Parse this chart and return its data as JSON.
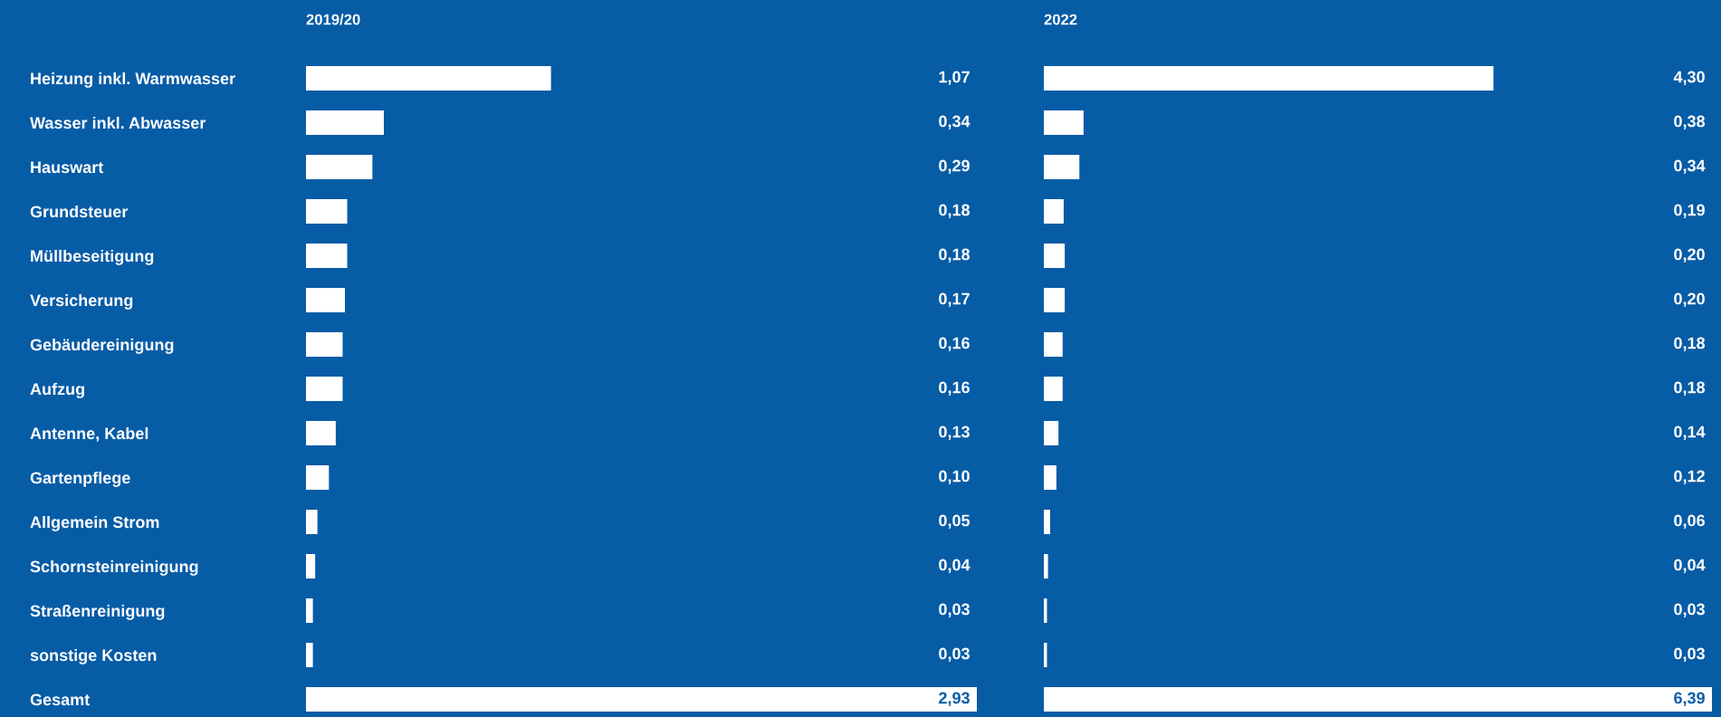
{
  "chart_data": [
    {
      "type": "bar",
      "orientation": "horizontal",
      "title": "2019/20",
      "categories": [
        "Heizung inkl. Warmwasser",
        "Wasser inkl. Abwasser",
        "Hauswart",
        "Grundsteuer",
        "Müllbeseitigung",
        "Versicherung",
        "Gebäudereinigung",
        "Aufzug",
        "Antenne, Kabel",
        "Gartenpflege",
        "Allgemein Strom",
        "Schornsteinreinigung",
        "Straßenreinigung",
        "sonstige Kosten",
        "Gesamt"
      ],
      "values": [
        1.07,
        0.34,
        0.29,
        0.18,
        0.18,
        0.17,
        0.16,
        0.16,
        0.13,
        0.1,
        0.05,
        0.04,
        0.03,
        0.03,
        2.93
      ],
      "value_labels": [
        "1,07",
        "0,34",
        "0,29",
        "0,18",
        "0,18",
        "0,17",
        "0,16",
        "0,16",
        "0,13",
        "0,10",
        "0,05",
        "0,04",
        "0,03",
        "0,03",
        "2,93"
      ],
      "color": "#ffffff"
    },
    {
      "type": "bar",
      "orientation": "horizontal",
      "title": "2022",
      "categories": [
        null,
        null,
        null,
        null,
        null,
        null,
        null,
        null,
        null,
        null,
        null,
        null,
        null,
        null,
        null
      ],
      "values": [
        4.3,
        0.38,
        0.34,
        0.19,
        0.2,
        0.2,
        0.18,
        0.18,
        0.14,
        0.12,
        0.06,
        0.04,
        0.03,
        0.03,
        6.39
      ],
      "value_labels": [
        "4,30",
        "0,38",
        "0,34",
        "0,19",
        "0,20",
        "0,20",
        "0,18",
        "0,18",
        "0,14",
        "0,12",
        "0,06",
        "0,04",
        "0,03",
        "0,03",
        "6,39"
      ],
      "color": "#ffffff"
    }
  ]
}
